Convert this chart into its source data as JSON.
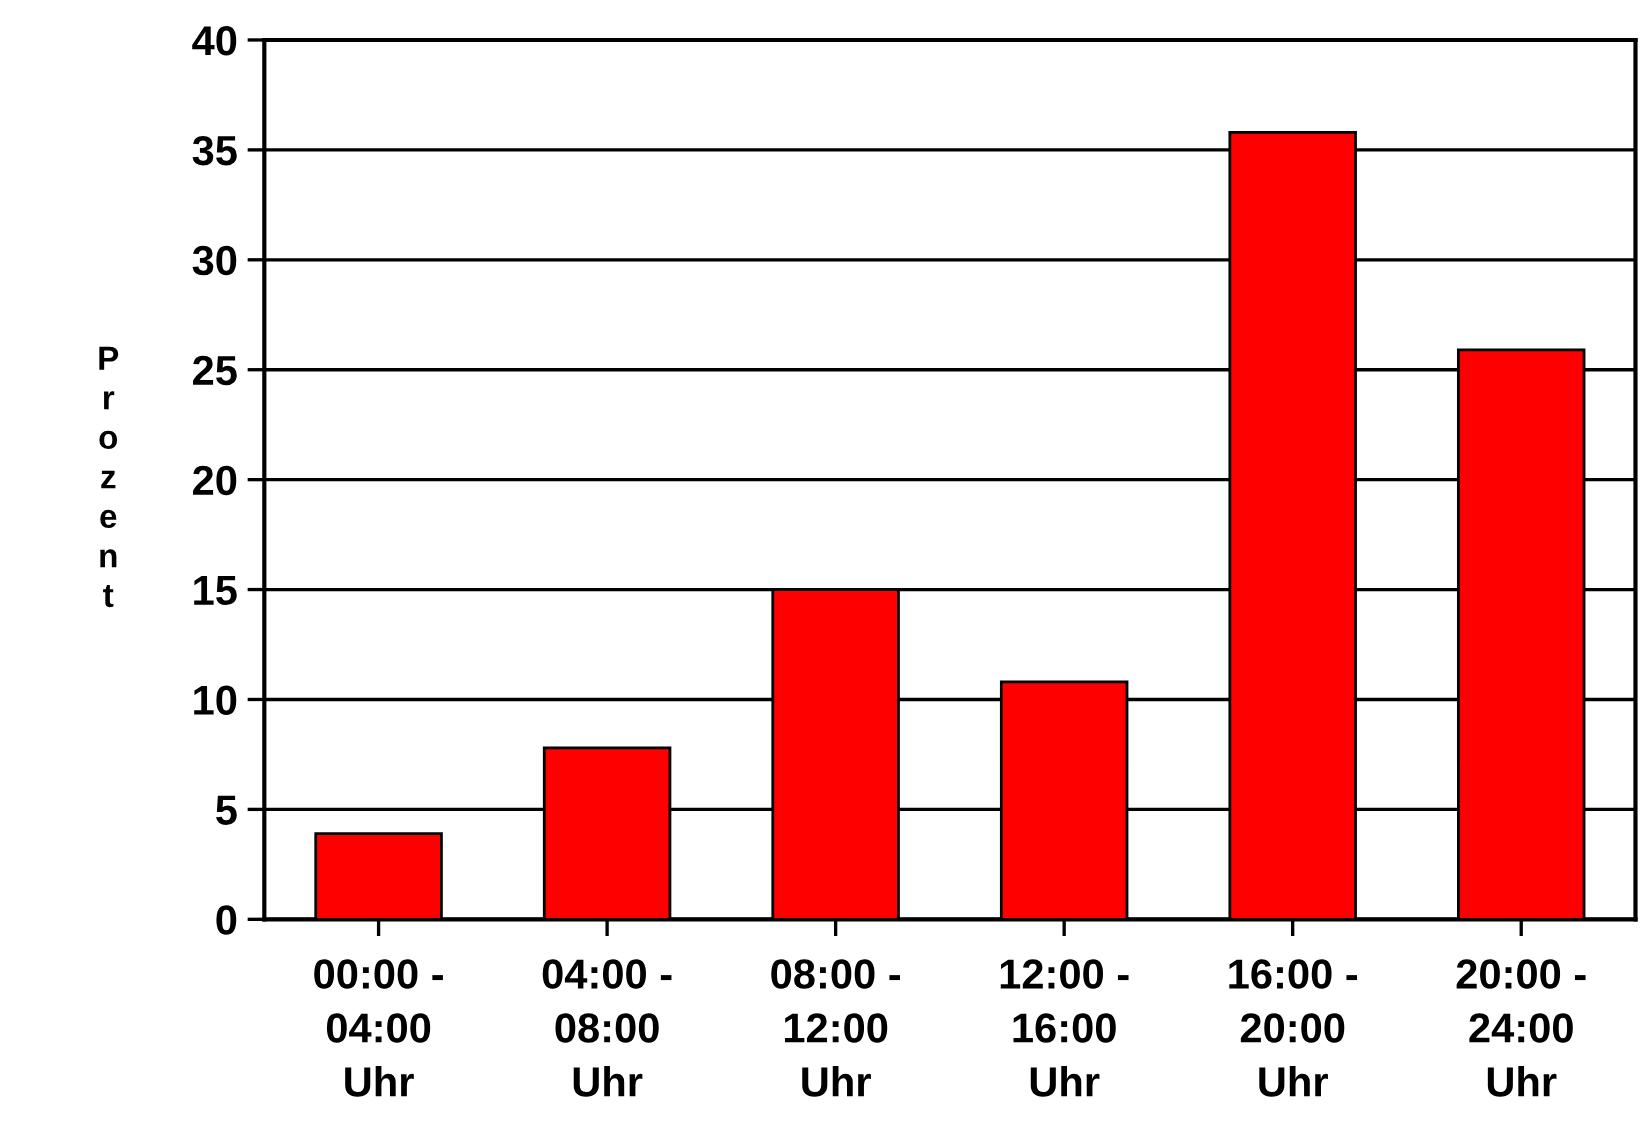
{
  "chart_data": {
    "type": "bar",
    "ylabel": "Prozent",
    "categories": [
      "00:00 -\n04:00\nUhr",
      "04:00 -\n08:00\nUhr",
      "08:00 -\n12:00\nUhr",
      "12:00 -\n16:00\nUhr",
      "16:00 -\n20:00\nUhr",
      "20:00 -\n24:00\nUhr"
    ],
    "values": [
      3.9,
      7.8,
      15,
      10.8,
      35.8,
      25.9
    ],
    "color": "#ff0000",
    "ylim": [
      0,
      40
    ],
    "yticks": [
      0,
      5,
      10,
      15,
      20,
      25,
      30,
      35,
      40
    ],
    "grid": "y"
  }
}
